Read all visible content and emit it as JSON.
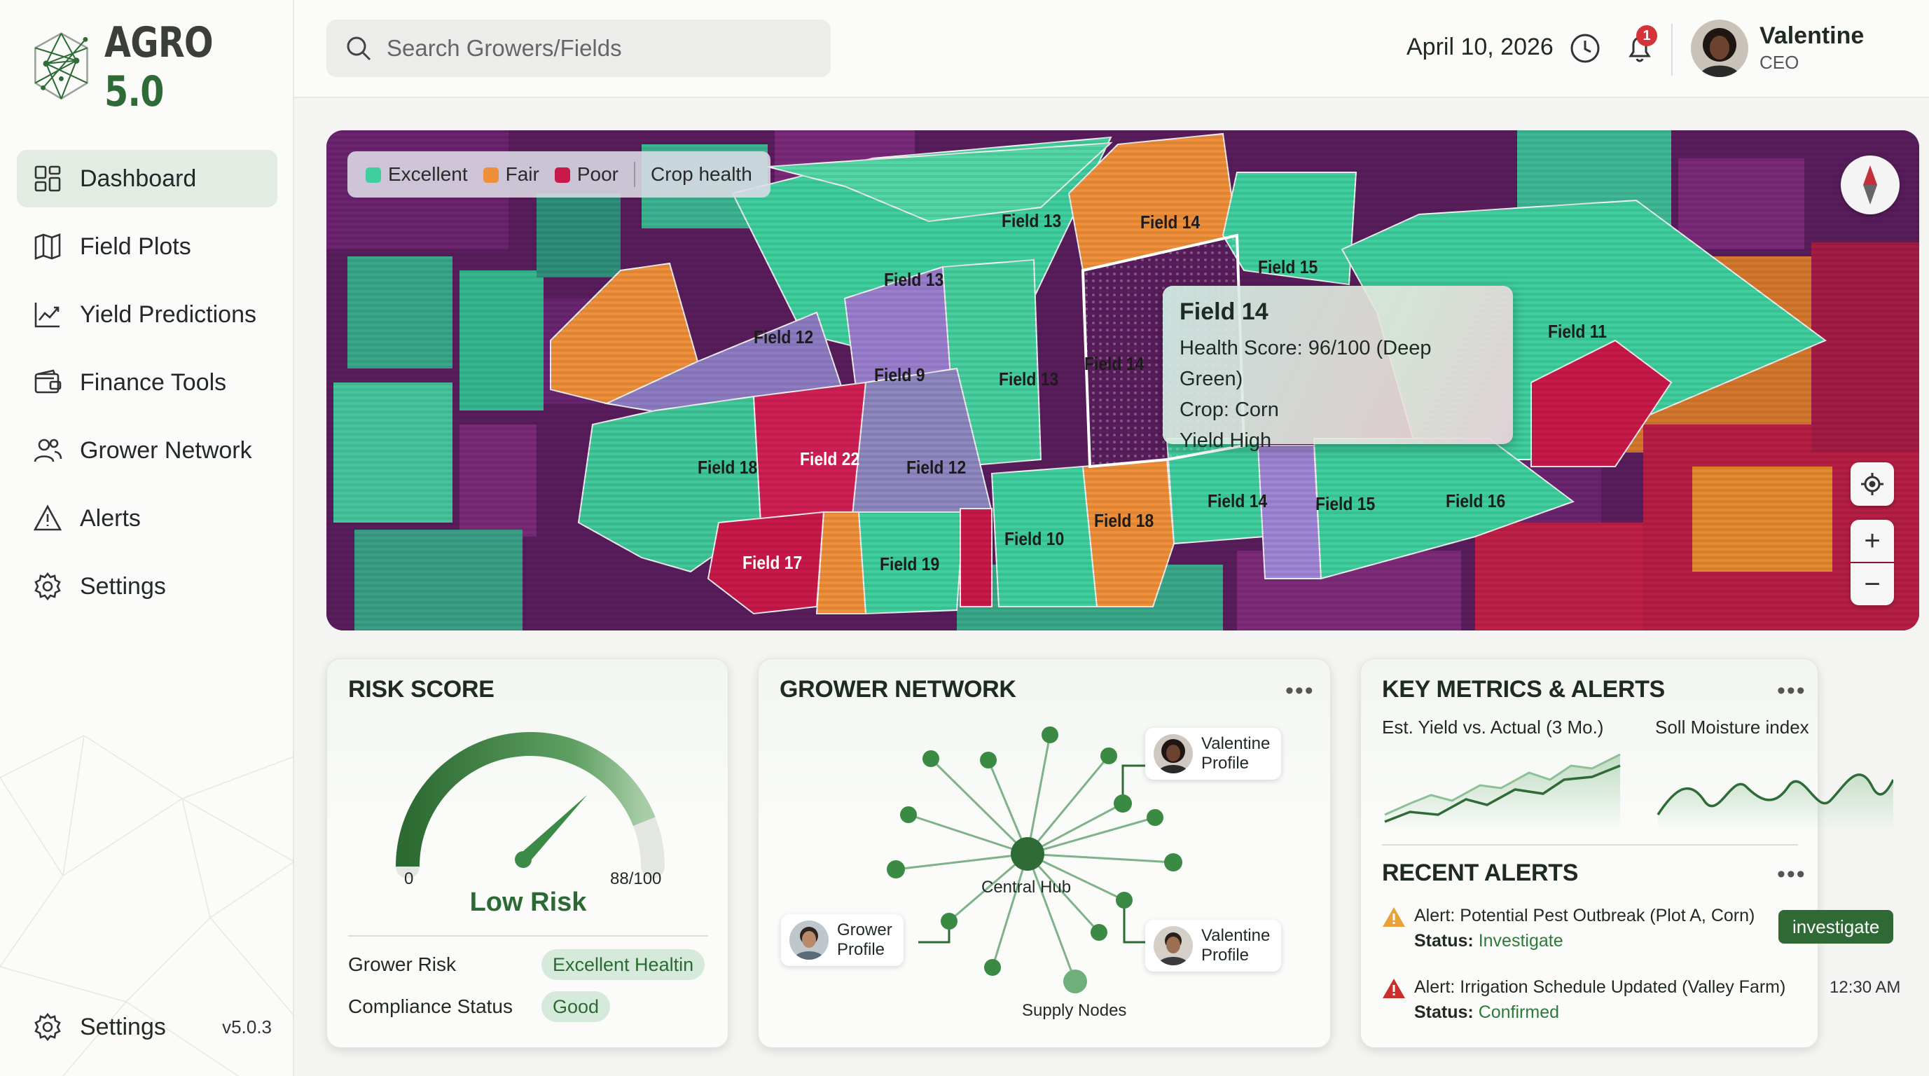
{
  "app": {
    "logo_prefix": "AGRO",
    "logo_version": "5.0",
    "version": "v5.0.3"
  },
  "sidebar": {
    "items": [
      {
        "label": "Dashboard",
        "icon": "dashboard-icon",
        "active": true
      },
      {
        "label": "Field Plots",
        "icon": "map-icon"
      },
      {
        "label": "Yield Predictions",
        "icon": "chart-line-icon"
      },
      {
        "label": "Finance Tools",
        "icon": "wallet-icon"
      },
      {
        "label": "Grower Network",
        "icon": "users-icon"
      },
      {
        "label": "Alerts",
        "icon": "warning-icon"
      },
      {
        "label": "Settings",
        "icon": "gear-icon"
      }
    ],
    "footer_label": "Settings"
  },
  "header": {
    "search_placeholder": "Search Growers/Fields",
    "date": "April 10, 2026",
    "notification_count": "1",
    "user_name": "Valentine",
    "user_role": "CEO"
  },
  "map": {
    "legend": {
      "excellent": "Excellent",
      "fair": "Fair",
      "poor": "Poor",
      "layer": "Crop health"
    },
    "colors": {
      "excellent": "#3fcf9e",
      "fair": "#f08f3a",
      "poor": "#c9184a",
      "neutral": "#8e7cc3",
      "background": "#5e1f5e"
    },
    "fields": [
      "Field 13",
      "Field 14",
      "Field 13",
      "Field 15",
      "Field 12",
      "Field 9",
      "Field 13",
      "Field 14",
      "Field 11",
      "Field 18",
      "Field 22",
      "Field 12",
      "Field 14",
      "Field 15",
      "Field 16",
      "Field 17",
      "Field 19",
      "Field 10",
      "Field 18"
    ],
    "tooltip": {
      "title": "Field 14",
      "health": "Health Score: 96/100 (Deep Green)",
      "crop": "Crop: Corn",
      "yield": "Yield High"
    },
    "controls": {
      "zoom_in": "+",
      "zoom_out": "−"
    }
  },
  "risk": {
    "title": "RISK SCORE",
    "gauge_min": "0",
    "gauge_max": "88/100",
    "score_fraction": 0.88,
    "level": "Low Risk",
    "rows": [
      {
        "label": "Grower Risk",
        "value": "Excellent Healtin"
      },
      {
        "label": "Compliance Status",
        "value": "Good"
      }
    ]
  },
  "network": {
    "title": "GROWER NETWORK",
    "hub_label": "Central Hub",
    "nodes_label": "Supply Nodes",
    "profiles": [
      {
        "name": "Valentine",
        "sub": "Profile"
      },
      {
        "name": "Grower",
        "sub": "Profile"
      },
      {
        "name": "Valentine",
        "sub": "Profile"
      }
    ]
  },
  "metrics": {
    "title": "KEY METRICS & ALERTS",
    "yield_label": "Est. Yield vs. Actual (3 Mo.)",
    "moisture_label": "Soll Moisture index",
    "alerts_title": "RECENT ALERTS",
    "alerts": [
      {
        "title": "Alert: Potential Pest Outbreak (Plot A, Corn)",
        "status_label": "Status:",
        "status": "Investigate",
        "action": "investigate",
        "icon_color": "#e8a23a"
      },
      {
        "title": "Alert: Irrigation Schedule Updated (Valley Farm)",
        "status_label": "Status:",
        "status": "Confirmed",
        "time": "12:30 AM",
        "icon_color": "#c9302c"
      }
    ]
  }
}
